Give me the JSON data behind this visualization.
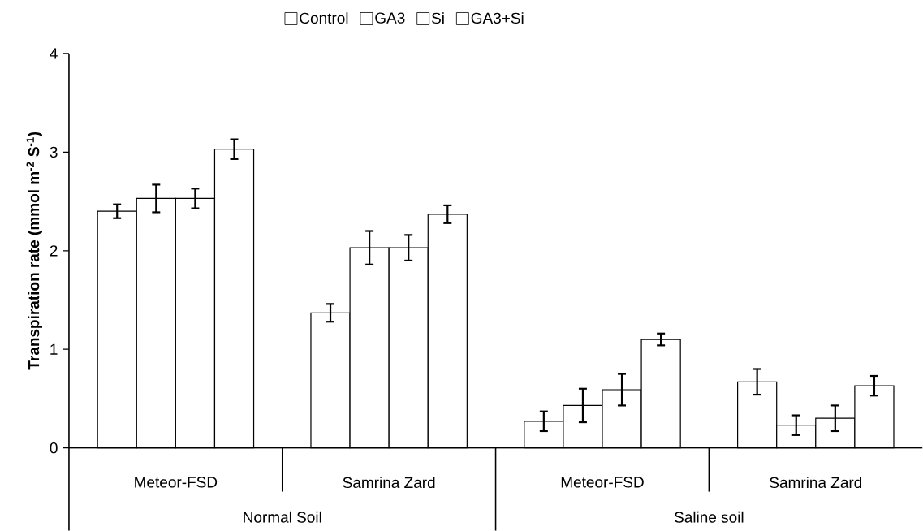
{
  "chart_data": {
    "type": "bar",
    "ylabel": "Transpiration rate (mmol m$^{-2}$  S$^{-1}$)",
    "categories": [
      "Meteor-FSD",
      "Samrina Zard",
      "Meteor-FSD",
      "Samrina Zard"
    ],
    "annotations": [
      "Normal Soil",
      "Saline soil"
    ],
    "series": [
      {
        "name": "Control",
        "color": "#000000",
        "values": [
          2.4,
          1.37,
          0.27,
          0.67
        ],
        "errors": [
          0.07,
          0.09,
          0.1,
          0.13
        ]
      },
      {
        "name": "GA3",
        "color": "#000000",
        "values": [
          2.53,
          2.03,
          0.43,
          0.23
        ],
        "errors": [
          0.14,
          0.17,
          0.17,
          0.1
        ]
      },
      {
        "name": "Si",
        "color": "#000000",
        "values": [
          2.53,
          2.03,
          0.59,
          0.3
        ],
        "errors": [
          0.1,
          0.13,
          0.16,
          0.13
        ]
      },
      {
        "name": "GA3+Si",
        "color": "#000000",
        "values": [
          3.03,
          2.37,
          1.1,
          0.63
        ],
        "errors": [
          0.1,
          0.09,
          0.06,
          0.1
        ]
      }
    ],
    "ylim": [
      0,
      4
    ],
    "yticks": [
      0,
      1,
      2,
      3,
      4
    ],
    "grid": false,
    "legend": "top"
  }
}
